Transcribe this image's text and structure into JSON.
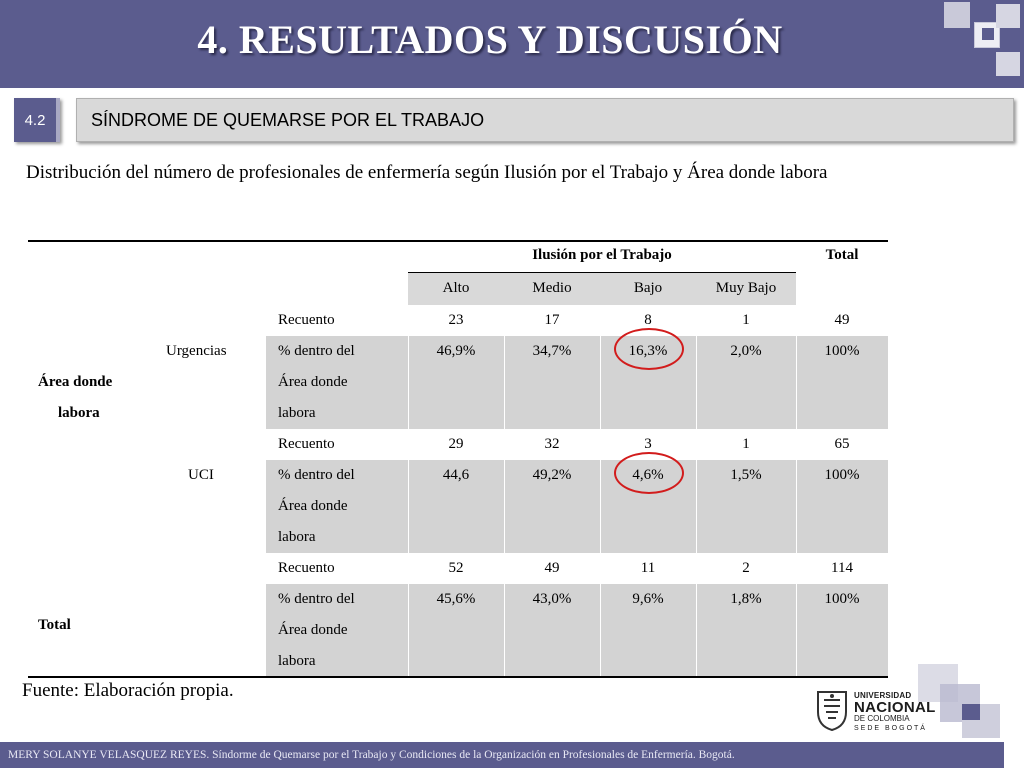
{
  "header": {
    "title": "4. RESULTADOS Y DISCUSIÓN"
  },
  "section": {
    "number": "4.2",
    "title": "SÍNDROME DE QUEMARSE POR EL TRABAJO"
  },
  "intro": "Distribución del número de profesionales de enfermería según Ilusión por el Trabajo y Área donde labora",
  "table": {
    "group_header": "Ilusión por el Trabajo",
    "total_header": "Total",
    "columns": [
      "Alto",
      "Medio",
      "Bajo",
      "Muy Bajo"
    ],
    "row_dimension_line1": "Área donde",
    "row_dimension_line2": "labora",
    "recount_label": "Recuento",
    "percent_label_line1": "% dentro del",
    "percent_label_line2": "Área donde",
    "percent_label_line3": "labora",
    "groups": [
      {
        "name": "Urgencias",
        "recuento": [
          "23",
          "17",
          "8",
          "1",
          "49"
        ],
        "porcentaje": [
          "46,9%",
          "34,7%",
          "16,3%",
          "2,0%",
          "100%"
        ]
      },
      {
        "name": "UCI",
        "recuento": [
          "29",
          "32",
          "3",
          "1",
          "65"
        ],
        "porcentaje": [
          "44,6",
          "49,2%",
          "4,6%",
          "1,5%",
          "100%"
        ]
      },
      {
        "name": "Total",
        "recuento": [
          "52",
          "49",
          "11",
          "2",
          "114"
        ],
        "porcentaje": [
          "45,6%",
          "43,0%",
          "9,6%",
          "1,8%",
          "100%"
        ]
      }
    ]
  },
  "source": "Fuente: Elaboración propia.",
  "logo": {
    "line1": "UNIVERSIDAD",
    "line2": "NACIONAL",
    "line3": "DE COLOMBIA",
    "line4": "SEDE BOGOTÁ",
    "icon": "university-shield-icon"
  },
  "footer": "MERY SOLANYE VELASQUEZ REYES. Síndorme de Quemarse por el Trabajo y Condiciones de la Organización en Profesionales de Enfermería. Bogotá.",
  "colors": {
    "header": "#5b5c8e",
    "shade": "#d3d3d3",
    "highlight_circle": "#d21c1c"
  }
}
